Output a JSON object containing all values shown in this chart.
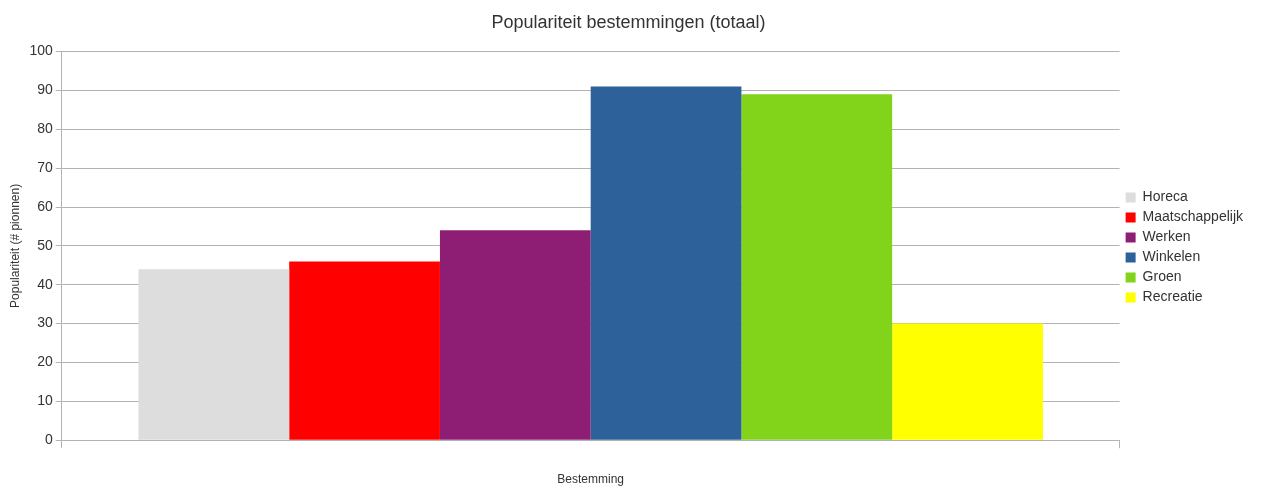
{
  "chart_data": {
    "type": "bar",
    "title": "Populariteit bestemmingen (totaal)",
    "xlabel": "Bestemming",
    "ylabel": "Populariteit (# pionnen)",
    "categories": [
      null
    ],
    "series": [
      {
        "name": "Horeca",
        "color": "#dddddd",
        "values": [
          44
        ]
      },
      {
        "name": "Maatschappelijk",
        "color": "#ff0000",
        "values": [
          46
        ]
      },
      {
        "name": "Werken",
        "color": "#8e1e74",
        "values": [
          54
        ]
      },
      {
        "name": "Winkelen",
        "color": "#2c6199",
        "values": [
          91
        ]
      },
      {
        "name": "Groen",
        "color": "#81d41a",
        "values": [
          89
        ]
      },
      {
        "name": "Recreatie",
        "color": "#ffff00",
        "values": [
          30
        ]
      }
    ],
    "ylim": [
      0,
      100
    ],
    "yticks": [
      0,
      10,
      20,
      30,
      40,
      50,
      60,
      70,
      80,
      90,
      100
    ],
    "grid": "y",
    "legend": "right"
  }
}
